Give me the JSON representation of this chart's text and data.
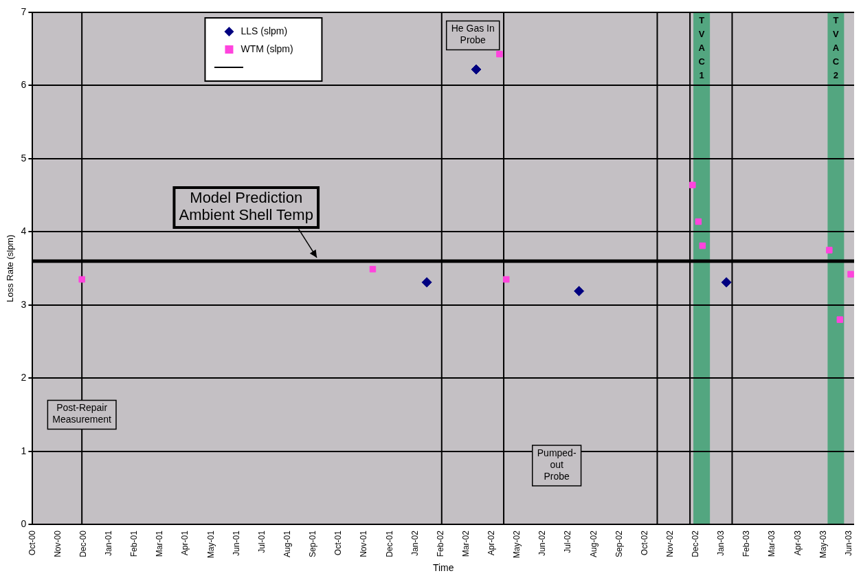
{
  "chart_data": {
    "type": "scatter",
    "xlabel": "Time",
    "ylabel": "Loss Rate (slpm)",
    "xlim": [
      "2000-10-01",
      "2003-06-07"
    ],
    "ylim": [
      0,
      7
    ],
    "yticks": [
      0,
      1,
      2,
      3,
      4,
      5,
      6,
      7
    ],
    "xticks": [
      {
        "value": "2000-10",
        "label": "Oct-00"
      },
      {
        "value": "2000-11",
        "label": "Nov-00"
      },
      {
        "value": "2000-12",
        "label": "Dec-00"
      },
      {
        "value": "2001-01",
        "label": "Jan-01"
      },
      {
        "value": "2001-02",
        "label": "Feb-01"
      },
      {
        "value": "2001-03",
        "label": "Mar-01"
      },
      {
        "value": "2001-04",
        "label": "Apr-01"
      },
      {
        "value": "2001-05",
        "label": "May-01"
      },
      {
        "value": "2001-06",
        "label": "Jun-01"
      },
      {
        "value": "2001-07",
        "label": "Jul-01"
      },
      {
        "value": "2001-08",
        "label": "Aug-01"
      },
      {
        "value": "2001-09",
        "label": "Sep-01"
      },
      {
        "value": "2001-10",
        "label": "Oct-01"
      },
      {
        "value": "2001-11",
        "label": "Nov-01"
      },
      {
        "value": "2001-12",
        "label": "Dec-01"
      },
      {
        "value": "2002-01",
        "label": "Jan-02"
      },
      {
        "value": "2002-02",
        "label": "Feb-02"
      },
      {
        "value": "2002-03",
        "label": "Mar-02"
      },
      {
        "value": "2002-04",
        "label": "Apr-02"
      },
      {
        "value": "2002-05",
        "label": "May-02"
      },
      {
        "value": "2002-06",
        "label": "Jun-02"
      },
      {
        "value": "2002-07",
        "label": "Jul-02"
      },
      {
        "value": "2002-08",
        "label": "Aug-02"
      },
      {
        "value": "2002-09",
        "label": "Sep-02"
      },
      {
        "value": "2002-10",
        "label": "Oct-02"
      },
      {
        "value": "2002-11",
        "label": "Nov-02"
      },
      {
        "value": "2002-12",
        "label": "Dec-02"
      },
      {
        "value": "2003-01",
        "label": "Jan-03"
      },
      {
        "value": "2003-02",
        "label": "Feb-03"
      },
      {
        "value": "2003-03",
        "label": "Mar-03"
      },
      {
        "value": "2003-04",
        "label": "Apr-03"
      },
      {
        "value": "2003-05",
        "label": "May-03"
      },
      {
        "value": "2003-06",
        "label": "Jun-03"
      }
    ],
    "grid": "y",
    "legend": "top",
    "series": [
      {
        "name": "LLS (slpm)",
        "color": "#000080",
        "marker": "diamond",
        "x": [
          "2002-01-15",
          "2002-03-13",
          "2002-07-14",
          "2003-01-07"
        ],
        "values": [
          3.31,
          6.22,
          3.19,
          3.31
        ]
      },
      {
        "name": "WTM (slpm)",
        "color": "#ff44dd",
        "marker": "square",
        "x": [
          "2000-11-29",
          "2001-11-11",
          "2002-04-10",
          "2002-04-18",
          "2002-11-27",
          "2002-12-04",
          "2002-12-09",
          "2003-05-08",
          "2003-05-21",
          "2003-06-03"
        ],
        "values": [
          3.35,
          3.49,
          6.43,
          3.35,
          4.64,
          4.14,
          3.81,
          3.75,
          2.8,
          3.42
        ]
      }
    ],
    "ref_lines": [
      {
        "axis": "y",
        "value": 3.6,
        "label": "Model Prediction\nAmbient Shell Temp",
        "color": "#000000"
      },
      {
        "axis": "x",
        "value": "2000-11-29",
        "color": "#000000"
      },
      {
        "axis": "x",
        "value": "2002-02-02",
        "color": "#000000"
      },
      {
        "axis": "x",
        "value": "2002-04-15",
        "color": "#000000"
      },
      {
        "axis": "x",
        "value": "2002-10-16",
        "color": "#000000"
      },
      {
        "axis": "x",
        "value": "2002-11-24",
        "color": "#000000"
      },
      {
        "axis": "x",
        "value": "2003-01-14",
        "color": "#000000"
      }
    ],
    "bands": [
      {
        "axis": "x",
        "from": "2002-11-28",
        "to": "2002-12-18",
        "label": "TVAC1",
        "color": "#2e9e6a"
      },
      {
        "axis": "x",
        "from": "2003-05-06",
        "to": "2003-05-26",
        "label": "TVAC2",
        "color": "#2e9e6a"
      }
    ],
    "annotations": [
      {
        "text": "Post-Repair\nMeasurement",
        "x": "2000-11-29",
        "y": 1.5
      },
      "He Gas In\nProbe",
      "Pumped-\nout\nProbe"
    ]
  }
}
